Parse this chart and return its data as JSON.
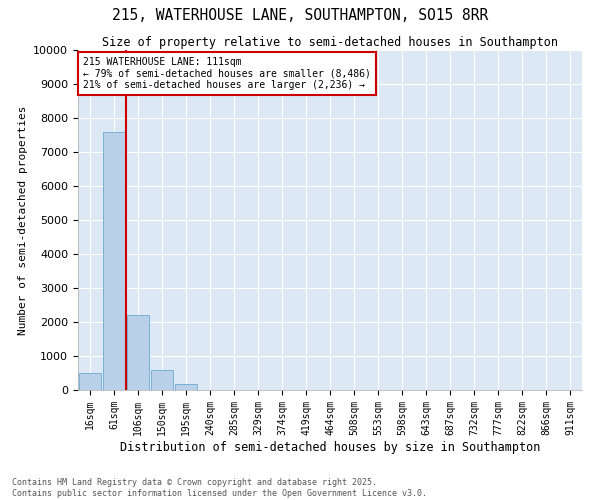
{
  "title": "215, WATERHOUSE LANE, SOUTHAMPTON, SO15 8RR",
  "subtitle": "Size of property relative to semi-detached houses in Southampton",
  "xlabel": "Distribution of semi-detached houses by size in Southampton",
  "ylabel": "Number of semi-detached properties",
  "property_label": "215 WATERHOUSE LANE: 111sqm",
  "pct_smaller": 79,
  "n_smaller": 8486,
  "pct_larger": 21,
  "n_larger": 2236,
  "categories": [
    "16sqm",
    "61sqm",
    "106sqm",
    "150sqm",
    "195sqm",
    "240sqm",
    "285sqm",
    "329sqm",
    "374sqm",
    "419sqm",
    "464sqm",
    "508sqm",
    "553sqm",
    "598sqm",
    "643sqm",
    "687sqm",
    "732sqm",
    "777sqm",
    "822sqm",
    "866sqm",
    "911sqm"
  ],
  "values": [
    500,
    7600,
    2200,
    580,
    190,
    0,
    0,
    0,
    0,
    0,
    0,
    0,
    0,
    0,
    0,
    0,
    0,
    0,
    0,
    0,
    0
  ],
  "bar_color": "#b8d0e8",
  "bar_edge_color": "#7aafd4",
  "redline_x": 1.5,
  "redline_color": "#cc0000",
  "annotation_box_color": "#cc0000",
  "background_color": "#dce9f5",
  "ylim": [
    0,
    10000
  ],
  "yticks": [
    0,
    1000,
    2000,
    3000,
    4000,
    5000,
    6000,
    7000,
    8000,
    9000,
    10000
  ],
  "footer_line1": "Contains HM Land Registry data © Crown copyright and database right 2025.",
  "footer_line2": "Contains public sector information licensed under the Open Government Licence v3.0."
}
